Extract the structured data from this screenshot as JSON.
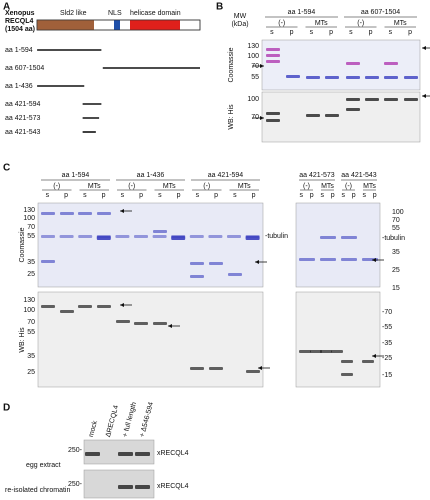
{
  "panel_a": {
    "label": "A",
    "protein": [
      "Xenopus",
      "RECQL4",
      "(1504 aa)"
    ],
    "domains": [
      "Sld2 like",
      "NLS",
      "helicase domain"
    ],
    "constructs": [
      "aa 1-594",
      "aa 607-1504",
      "aa 1-436",
      "aa 421-594",
      "aa 421-573",
      "aa 421-543"
    ],
    "construct_colors": [
      "#e0201b",
      "#000000",
      "#000000",
      "#e0201b",
      "#e0201b",
      "#000000"
    ]
  },
  "panel_b": {
    "label": "B",
    "mw_label": [
      "MW",
      "(kDa)"
    ],
    "groups": [
      {
        "name": "aa 1-594",
        "conditions": [
          {
            "name": "(-)",
            "lanes": [
              "s",
              "p"
            ]
          },
          {
            "name": "MTs",
            "lanes": [
              "s",
              "p"
            ]
          }
        ]
      },
      {
        "name": "aa 607-1504",
        "conditions": [
          {
            "name": "(-)",
            "lanes": [
              "s",
              "p"
            ]
          },
          {
            "name": "MTs",
            "lanes": [
              "s",
              "p"
            ]
          }
        ]
      }
    ],
    "coomassie_label": "Coomassie",
    "wb_label": "WB: His",
    "coomassie_markers": [
      "130",
      "100",
      "70",
      "55"
    ],
    "wb_markers": [
      "100",
      "70"
    ]
  },
  "panel_c": {
    "label": "C",
    "left_groups": [
      {
        "name": "aa 1-594",
        "conditions": [
          {
            "name": "(-)",
            "lanes": [
              "s",
              "p"
            ]
          },
          {
            "name": "MTs",
            "lanes": [
              "s",
              "p"
            ]
          }
        ]
      },
      {
        "name": "aa 1-436",
        "conditions": [
          {
            "name": "(-)",
            "lanes": [
              "s",
              "p"
            ]
          },
          {
            "name": "MTs",
            "lanes": [
              "s",
              "p"
            ]
          }
        ]
      },
      {
        "name": "aa 421-594",
        "conditions": [
          {
            "name": "(-)",
            "lanes": [
              "s",
              "p"
            ]
          },
          {
            "name": "MTs",
            "lanes": [
              "s",
              "p"
            ]
          }
        ]
      }
    ],
    "right_groups": [
      {
        "name": "aa 421-573",
        "conditions": [
          {
            "name": "(-)",
            "lanes": [
              "s",
              "p"
            ]
          },
          {
            "name": "MTs",
            "lanes": [
              "s",
              "p"
            ]
          }
        ]
      },
      {
        "name": "aa 421-543",
        "conditions": [
          {
            "name": "(-)",
            "lanes": [
              "s",
              "p"
            ]
          },
          {
            "name": "MTs",
            "lanes": [
              "s",
              "p"
            ]
          }
        ]
      }
    ],
    "coomassie_label": "Coomassie",
    "wb_label": "WB: His",
    "left_coomassie_markers": [
      "130",
      "100",
      "70",
      "55",
      "35",
      "25"
    ],
    "left_wb_markers": [
      "130",
      "100",
      "70",
      "55",
      "35",
      "25"
    ],
    "right_coomassie_markers": [
      "100",
      "70",
      "55",
      "35",
      "25",
      "15"
    ],
    "right_wb_markers": [
      "-70",
      "-55",
      "-35",
      "-25",
      "-15"
    ],
    "tubulin_labels": [
      "-tubulin",
      "-tubulin"
    ]
  },
  "panel_d": {
    "label": "D",
    "lanes": [
      "mock",
      "ΔRECQL4",
      "+ full length",
      "+ Δ546-594"
    ],
    "rows": [
      "egg extract",
      "re-isolated chromatin"
    ],
    "markers": [
      "250-",
      "250-"
    ],
    "band_labels": [
      "xRECQL4",
      "xRECQL4"
    ]
  }
}
